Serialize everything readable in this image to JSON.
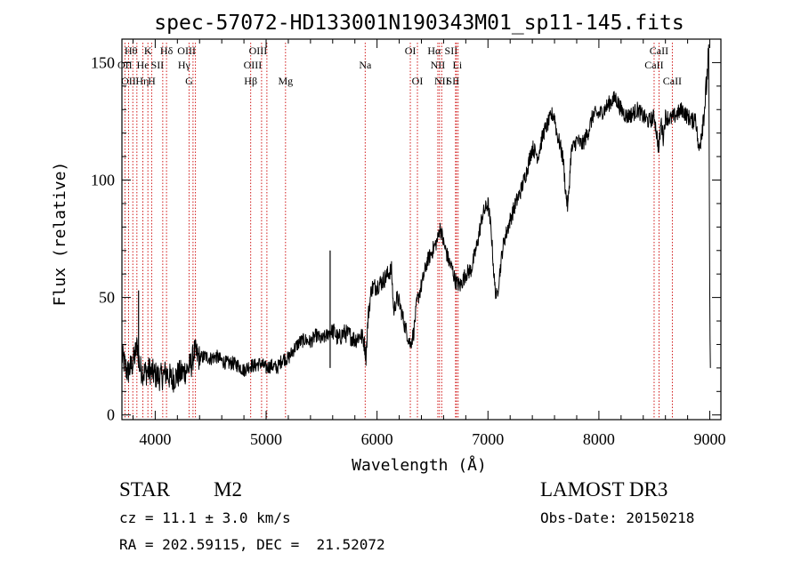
{
  "chart_data": {
    "type": "line",
    "title": "spec-57072-HD133001N190343M01_sp11-145.fits",
    "xlabel": "Wavelength (Å)",
    "ylabel": "Flux (relative)",
    "xlim": [
      3700,
      9100
    ],
    "ylim": [
      -2,
      160
    ],
    "x_ticks": [
      4000,
      5000,
      6000,
      7000,
      8000,
      9000
    ],
    "y_ticks": [
      0,
      50,
      100,
      150
    ],
    "x_minor_step": 200,
    "y_minor_step": 10,
    "line_color": "#000000",
    "marker_color": "#cc0000",
    "series": [
      {
        "name": "flux",
        "x": [
          3700,
          3750,
          3800,
          3840,
          3860,
          3900,
          3950,
          4000,
          4050,
          4100,
          4150,
          4200,
          4250,
          4300,
          4330,
          4350,
          4400,
          4450,
          4500,
          4550,
          4600,
          4650,
          4700,
          4750,
          4800,
          4850,
          4900,
          4950,
          5000,
          5050,
          5100,
          5150,
          5200,
          5250,
          5300,
          5350,
          5400,
          5450,
          5500,
          5550,
          5580,
          5620,
          5650,
          5700,
          5750,
          5800,
          5850,
          5880,
          5900,
          5920,
          5950,
          6000,
          6050,
          6100,
          6130,
          6150,
          6180,
          6200,
          6250,
          6300,
          6330,
          6360,
          6400,
          6450,
          6500,
          6550,
          6563,
          6580,
          6600,
          6620,
          6650,
          6680,
          6700,
          6720,
          6750,
          6800,
          6850,
          6900,
          6950,
          7000,
          7030,
          7060,
          7080,
          7100,
          7130,
          7150,
          7170,
          7200,
          7250,
          7300,
          7350,
          7400,
          7450,
          7500,
          7550,
          7580,
          7600,
          7620,
          7650,
          7680,
          7700,
          7720,
          7750,
          7800,
          7850,
          7900,
          7950,
          8000,
          8050,
          8100,
          8150,
          8200,
          8250,
          8300,
          8350,
          8400,
          8450,
          8500,
          8520,
          8540,
          8560,
          8580,
          8600,
          8650,
          8700,
          8750,
          8800,
          8850,
          8870,
          8900,
          8950,
          8970,
          8990,
          9000,
          9005
        ],
        "y": [
          25,
          18,
          22,
          30,
          20,
          18,
          19,
          17,
          16,
          18,
          15,
          17,
          18,
          20,
          22,
          27,
          24,
          25,
          24,
          25,
          23,
          22,
          22,
          21,
          19,
          21,
          21,
          22,
          20,
          21,
          20,
          24,
          24,
          28,
          31,
          32,
          31,
          34,
          32,
          34,
          36,
          35,
          32,
          35,
          34,
          32,
          34,
          32,
          25,
          42,
          54,
          55,
          57,
          60,
          62,
          44,
          50,
          48,
          38,
          30,
          35,
          48,
          55,
          65,
          70,
          75,
          80,
          78,
          73,
          70,
          65,
          62,
          58,
          56,
          55,
          60,
          62,
          72,
          85,
          90,
          78,
          55,
          50,
          58,
          70,
          75,
          78,
          83,
          90,
          96,
          104,
          114,
          110,
          120,
          125,
          128,
          127,
          120,
          115,
          108,
          95,
          88,
          112,
          117,
          115,
          120,
          128,
          128,
          130,
          133,
          135,
          130,
          127,
          128,
          130,
          127,
          125,
          127,
          120,
          113,
          125,
          118,
          127,
          126,
          128,
          130,
          127,
          125,
          128,
          112,
          130,
          140,
          155,
          50,
          20
        ]
      }
    ],
    "lines": [
      {
        "name": "Hθ",
        "x": 3798,
        "label_row": 0,
        "label_dx": -2
      },
      {
        "name": "OII",
        "x": 3727,
        "label_row": 1,
        "label_dx": 0
      },
      {
        "name": "OII",
        "x": 3760,
        "label_row": 2,
        "label_dx": 0
      },
      {
        "name": "He",
        "x": 3889,
        "label_row": 1,
        "label_dx": 0
      },
      {
        "name": "Hη",
        "x": 3835,
        "label_row": 2,
        "label_dx": 6
      },
      {
        "name": "K",
        "x": 3934,
        "label_row": 0,
        "label_dx": 0
      },
      {
        "name": "H",
        "x": 3968,
        "label_row": 2,
        "label_dx": 0
      },
      {
        "name": "SII",
        "x": 4068,
        "label_row": 1,
        "label_dx": -6
      },
      {
        "name": "Hδ",
        "x": 4102,
        "label_row": 0,
        "label_dx": 0
      },
      {
        "name": "G",
        "x": 4305,
        "label_row": 2,
        "label_dx": 0
      },
      {
        "name": "OIII",
        "x": 4363,
        "label_row": 0,
        "label_dx": -10
      },
      {
        "name": "Hγ",
        "x": 4341,
        "label_row": 1,
        "label_dx": -10
      },
      {
        "name": "Hβ",
        "x": 4861,
        "label_row": 2,
        "label_dx": 0
      },
      {
        "name": "OIII",
        "x": 4959,
        "label_row": 1,
        "label_dx": -10
      },
      {
        "name": "OIII",
        "x": 5007,
        "label_row": 0,
        "label_dx": -10
      },
      {
        "name": "Mg",
        "x": 5175,
        "label_row": 2,
        "label_dx": 0
      },
      {
        "name": "Na",
        "x": 5893,
        "label_row": 1,
        "label_dx": 0
      },
      {
        "name": "OI",
        "x": 6300,
        "label_row": 0,
        "label_dx": 0
      },
      {
        "name": "OI",
        "x": 6364,
        "label_row": 2,
        "label_dx": 0
      },
      {
        "name": "Hα",
        "x": 6563,
        "label_row": 0,
        "label_dx": -6
      },
      {
        "name": "NII",
        "x": 6548,
        "label_row": 1,
        "label_dx": 0
      },
      {
        "name": "NII",
        "x": 6583,
        "label_row": 2,
        "label_dx": 0
      },
      {
        "name": "SII",
        "x": 6716,
        "label_row": 0,
        "label_dx": -6
      },
      {
        "name": "Li",
        "x": 6708,
        "label_row": 1,
        "label_dx": 2
      },
      {
        "name": "SII",
        "x": 6731,
        "label_row": 2,
        "label_dx": -6
      },
      {
        "name": "CaII",
        "x": 8498,
        "label_row": 1,
        "label_dx": 0
      },
      {
        "name": "CaII",
        "x": 8542,
        "label_row": 0,
        "label_dx": 0
      },
      {
        "name": "CaII",
        "x": 8662,
        "label_row": 2,
        "label_dx": 0
      }
    ],
    "annotations": [
      {
        "name": "spike-3850",
        "x": 3850,
        "y": 53
      },
      {
        "name": "spike-5577",
        "x": 5577,
        "y": 70
      }
    ]
  },
  "info": {
    "object_class": "STAR",
    "subclass": "M2",
    "redshift": "cz = 11.1 ± 3.0 km/s",
    "coords": "RA = 202.59115, DEC =  21.52072",
    "survey": "LAMOST DR3",
    "obs_date": "Obs-Date: 20150218"
  }
}
